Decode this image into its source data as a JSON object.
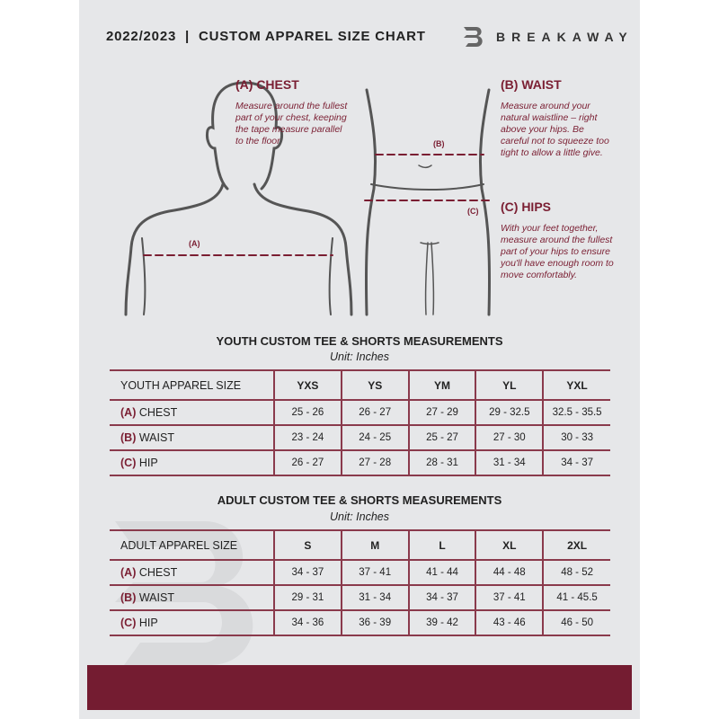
{
  "header": {
    "title": "2022/2023  |  CUSTOM APPAREL SIZE CHART",
    "brand": "BREAKAWAY"
  },
  "guide": {
    "chest": {
      "title": "(A) CHEST",
      "text": "Measure around the fullest part of your chest, keeping the tape measure parallel to the floor",
      "marker": "(A)"
    },
    "waist": {
      "title": "(B) WAIST",
      "text": "Measure around your natural waistline – right above your hips. Be careful not to squeeze too tight to allow a little give.",
      "marker": "(B)"
    },
    "hips": {
      "title": "(C) HIPS",
      "text": "With your feet together, measure around the fullest part of your hips to ensure you'll have enough room to move comfortably.",
      "marker": "(C)"
    }
  },
  "youth": {
    "title": "YOUTH CUSTOM TEE & SHORTS MEASUREMENTS",
    "unit": "Unit: Inches",
    "header": [
      "YOUTH APPAREL SIZE",
      "YXS",
      "YS",
      "YM",
      "YL",
      "YXL"
    ],
    "rows": [
      {
        "tag": "(A)",
        "label": "CHEST",
        "values": [
          "25 - 26",
          "26 - 27",
          "27 - 29",
          "29 - 32.5",
          "32.5 - 35.5"
        ]
      },
      {
        "tag": "(B)",
        "label": "WAIST",
        "values": [
          "23 - 24",
          "24 - 25",
          "25 - 27",
          "27 - 30",
          "30 - 33"
        ]
      },
      {
        "tag": "(C)",
        "label": "HIP",
        "values": [
          "26 - 27",
          "27 - 28",
          "28 - 31",
          "31 - 34",
          "34 - 37"
        ]
      }
    ]
  },
  "adult": {
    "title": "ADULT CUSTOM TEE & SHORTS MEASUREMENTS",
    "unit": "Unit: Inches",
    "header": [
      "ADULT APPAREL SIZE",
      "S",
      "M",
      "L",
      "XL",
      "2XL"
    ],
    "rows": [
      {
        "tag": "(A)",
        "label": "CHEST",
        "values": [
          "34 - 37",
          "37 - 41",
          "41 - 44",
          "44 - 48",
          "48 - 52"
        ]
      },
      {
        "tag": "(B)",
        "label": "WAIST",
        "values": [
          "29 - 31",
          "31 - 34",
          "34 - 37",
          "37 - 41",
          "41 - 45.5"
        ]
      },
      {
        "tag": "(C)",
        "label": "HIP",
        "values": [
          "34 - 36",
          "36 - 39",
          "39 - 42",
          "43 - 46",
          "46 - 50"
        ]
      }
    ]
  },
  "colors": {
    "accent": "#7a1e32",
    "background": "#e6e7e9"
  }
}
